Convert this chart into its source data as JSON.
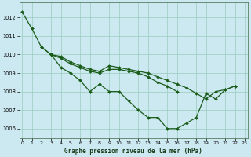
{
  "title": "Graphe pression niveau de la mer (hPa)",
  "bg_color": "#cce8f0",
  "grid_color": "#99ccbb",
  "line_color": "#1a5c1a",
  "marker": "D",
  "markersize": 2.0,
  "linewidth": 0.9,
  "xlim": [
    -0.3,
    23.3
  ],
  "ylim": [
    1005.5,
    1012.8
  ],
  "yticks": [
    1006,
    1007,
    1008,
    1009,
    1010,
    1011,
    1012
  ],
  "xticks": [
    0,
    1,
    2,
    3,
    4,
    5,
    6,
    7,
    8,
    9,
    10,
    11,
    12,
    13,
    14,
    15,
    16,
    17,
    18,
    19,
    20,
    21,
    22,
    23
  ],
  "series": [
    {
      "x": [
        0,
        1,
        2,
        3,
        4,
        5,
        6,
        7,
        8,
        9,
        10,
        11,
        12,
        13,
        14,
        15,
        16,
        17,
        18,
        19,
        20,
        21,
        22
      ],
      "y": [
        1012.3,
        1011.4,
        1010.4,
        1010.0,
        1009.3,
        1009.0,
        1008.6,
        1008.0,
        1008.4,
        1008.0,
        1008.0,
        1007.5,
        1007.0,
        1006.6,
        1006.6,
        1006.0,
        1006.0,
        1006.3,
        1006.6,
        1007.9,
        1007.6,
        1008.1,
        1008.3
      ]
    },
    {
      "x": [
        2,
        3
      ],
      "y": [
        1010.4,
        1010.0
      ]
    },
    {
      "x": [
        3,
        4,
        5,
        6,
        7,
        8,
        9,
        10,
        11,
        12,
        13,
        14,
        15,
        16
      ],
      "y": [
        1010.0,
        1009.8,
        1009.5,
        1009.3,
        1009.1,
        1009.0,
        1009.2,
        1009.2,
        1009.1,
        1009.0,
        1008.8,
        1008.5,
        1008.3,
        1008.0
      ]
    },
    {
      "x": [
        3,
        4,
        5,
        6,
        7,
        8,
        9,
        10,
        11,
        12,
        13,
        14,
        15,
        16,
        17,
        18,
        19,
        20,
        21,
        22
      ],
      "y": [
        1010.0,
        1009.9,
        1009.6,
        1009.4,
        1009.2,
        1009.1,
        1009.4,
        1009.3,
        1009.2,
        1009.1,
        1009.0,
        1008.8,
        1008.6,
        1008.4,
        1008.2,
        1007.9,
        1007.6,
        1008.0,
        1008.1,
        1008.3
      ]
    }
  ]
}
